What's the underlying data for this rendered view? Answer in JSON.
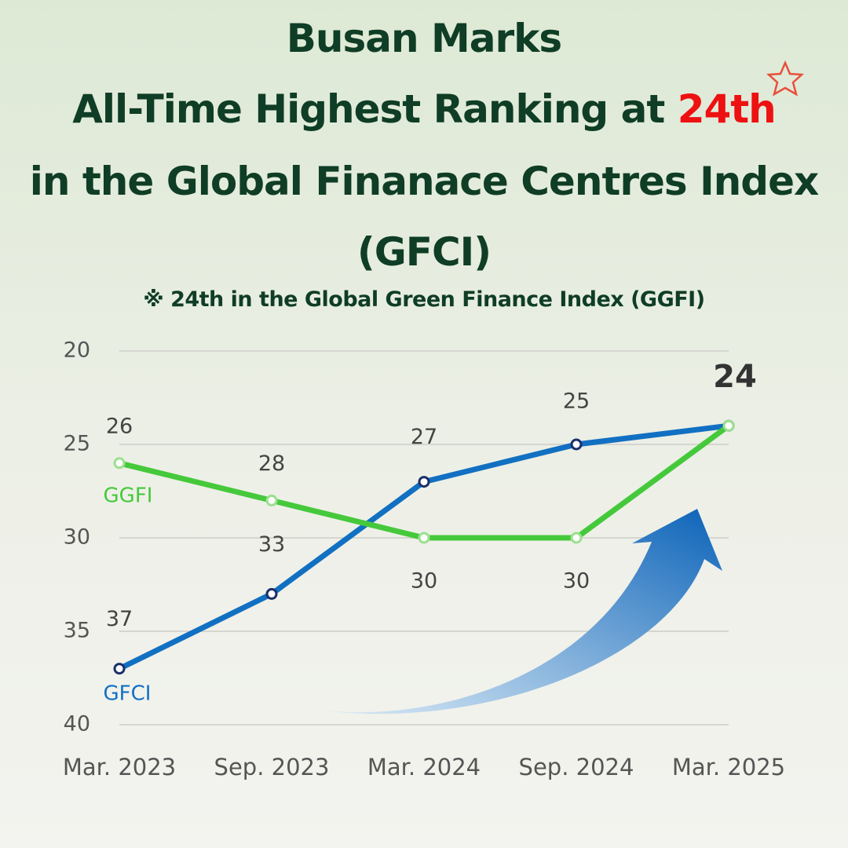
{
  "chart_data": {
    "type": "line",
    "title": [
      "Busan Marks",
      "All-Time Highest Ranking at",
      "24th",
      "in the Global Finanace Centres Index",
      "(GFCI)"
    ],
    "subtitle": "※ 24th in the Global Green Finance Index (GGFI)",
    "categories": [
      "Mar. 2023",
      "Sep. 2023",
      "Mar. 2024",
      "Sep. 2024",
      "Mar. 2025"
    ],
    "series": [
      {
        "name": "GFCI",
        "color": "#1170c2",
        "values": [
          37,
          33,
          27,
          25,
          24
        ]
      },
      {
        "name": "GGFI",
        "color": "#45c93b",
        "values": [
          26,
          28,
          30,
          30,
          24
        ]
      }
    ],
    "ylim": [
      40,
      20
    ],
    "yticks": [
      20,
      25,
      30,
      35,
      40
    ],
    "grid": true
  }
}
